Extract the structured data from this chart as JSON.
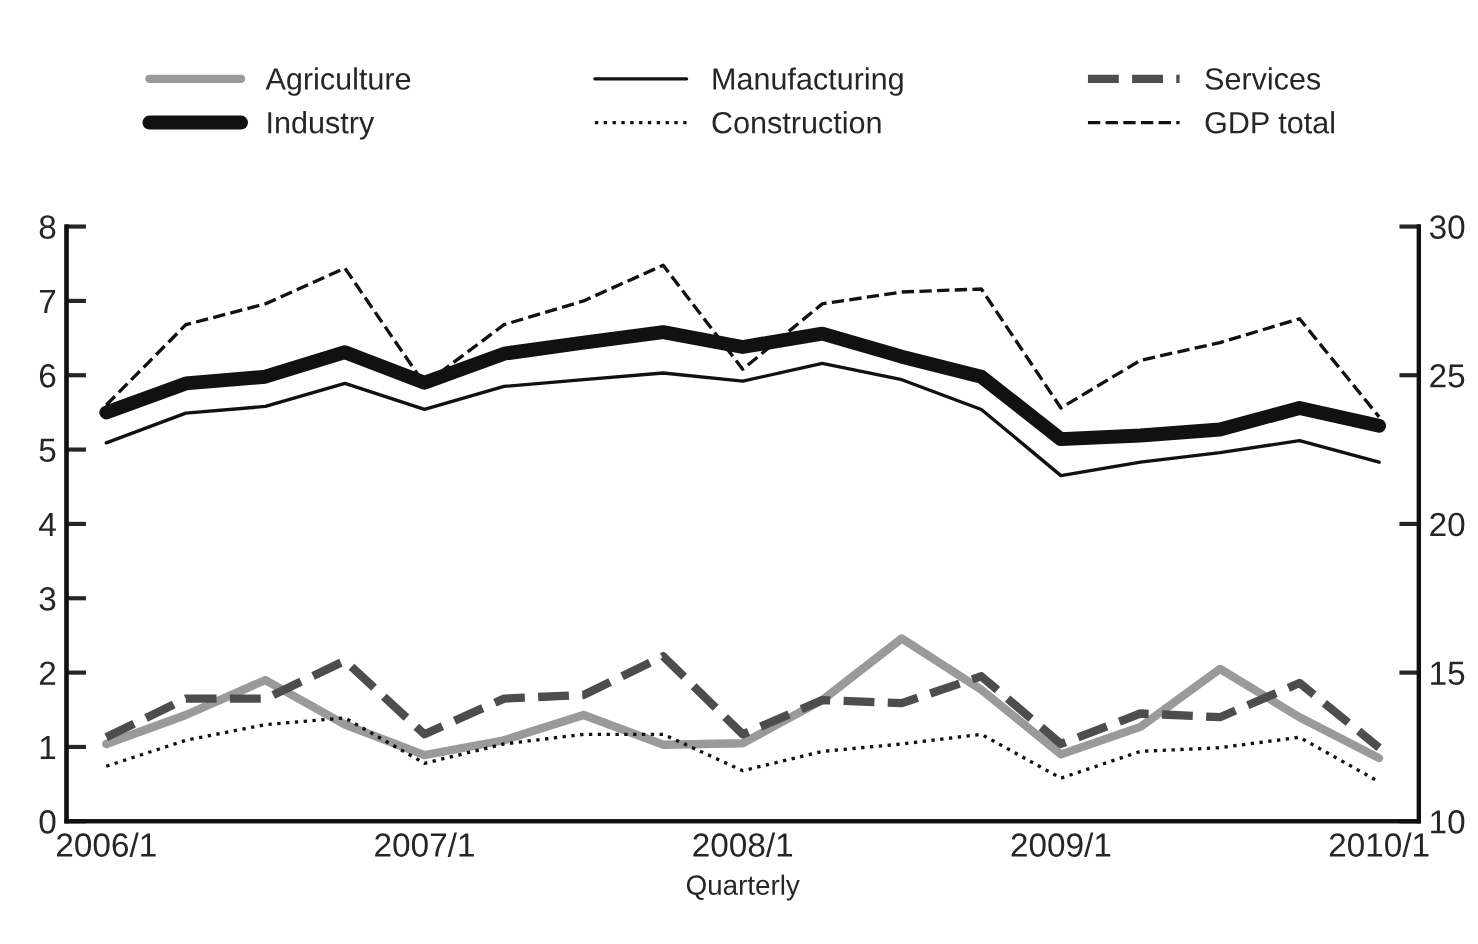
{
  "chart_data": {
    "type": "line",
    "xlabel": "Quarterly",
    "categories": [
      "2006/1",
      null,
      null,
      null,
      "2007/1",
      null,
      null,
      null,
      "2008/1",
      null,
      null,
      null,
      "2009/1",
      null,
      null,
      null,
      "2010/1"
    ],
    "series": [
      {
        "name": "Agriculture",
        "color": "#9a9a9a",
        "line_style": "solid",
        "values": [
          1.04,
          1.43,
          1.9,
          1.3,
          0.89,
          1.09,
          1.43,
          1.03,
          1.05,
          1.63,
          2.46,
          1.77,
          0.9,
          1.27,
          2.05,
          1.4,
          0.85
        ]
      },
      {
        "name": "Industry",
        "color": "#111111",
        "line_style": "solid",
        "values": [
          5.5,
          5.89,
          5.98,
          6.31,
          5.9,
          6.29,
          6.44,
          6.58,
          6.38,
          6.56,
          6.25,
          5.98,
          5.14,
          5.19,
          5.27,
          5.56,
          5.32
        ]
      },
      {
        "name": "Manufacturing",
        "color": "#111111",
        "line_style": "solid",
        "values": [
          5.09,
          5.49,
          5.58,
          5.89,
          5.54,
          5.85,
          5.94,
          6.03,
          5.92,
          6.16,
          5.94,
          5.54,
          4.65,
          4.83,
          4.96,
          5.12,
          4.83
        ]
      },
      {
        "name": "Construction",
        "color": "#111111",
        "line_style": "dotted",
        "values": [
          0.74,
          1.09,
          1.3,
          1.39,
          0.78,
          1.04,
          1.17,
          1.17,
          0.68,
          0.94,
          1.04,
          1.17,
          0.58,
          0.94,
          0.99,
          1.13,
          0.53
        ]
      },
      {
        "name": "Services",
        "color": "#4d4d4d",
        "line_style": "dashed",
        "values": [
          1.13,
          1.65,
          1.65,
          2.16,
          1.17,
          1.65,
          1.7,
          2.22,
          1.17,
          1.63,
          1.59,
          1.95,
          1.04,
          1.45,
          1.4,
          1.86,
          0.99
        ]
      },
      {
        "name": "GDP total",
        "color": "#111111",
        "line_style": "dashed",
        "axis": "y2",
        "values": [
          24.0,
          26.7,
          27.4,
          28.6,
          24.7,
          26.7,
          27.5,
          28.7,
          25.2,
          27.4,
          27.8,
          27.9,
          23.9,
          25.5,
          26.1,
          26.9,
          23.6
        ]
      }
    ],
    "ylim": [
      0,
      8
    ],
    "yticks": [
      0,
      1,
      2,
      3,
      4,
      5,
      6,
      7,
      8
    ],
    "y2lim": [
      10,
      30
    ],
    "y2ticks": [
      10,
      15,
      20,
      25,
      30
    ],
    "legend": "top",
    "grid": false,
    "marker": "none"
  }
}
